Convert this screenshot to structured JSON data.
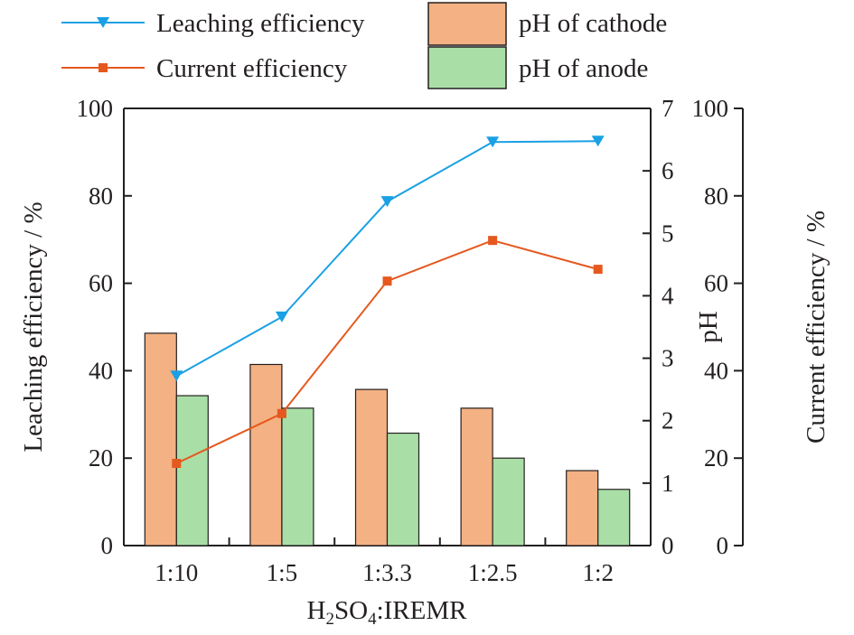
{
  "chart_data": {
    "type": "bar",
    "title": "",
    "categories": [
      "1:10",
      "1:5",
      "1:3.3",
      "1:2.5",
      "1:2"
    ],
    "xlabel": {
      "main": "H",
      "sub1": "2",
      "mid": "SO",
      "sub2": "4",
      "tail": ":IREMR"
    },
    "left_axis": {
      "label": "Leaching efficiency / %",
      "ylim": [
        0,
        100
      ],
      "ticks": [
        0,
        20,
        40,
        60,
        80,
        100
      ]
    },
    "middle_axis": {
      "label": "pH",
      "ylim": [
        0,
        7
      ],
      "ticks": [
        0,
        1,
        2,
        3,
        4,
        5,
        6,
        7
      ]
    },
    "right_axis": {
      "label": "Current efficiency / %",
      "ylim": [
        0,
        100
      ],
      "ticks": [
        0,
        20,
        40,
        60,
        80,
        100
      ]
    },
    "series": [
      {
        "name": "Leaching efficiency",
        "kind": "line",
        "axis": "left",
        "marker": "triangle-down",
        "color": "#1aa0e4",
        "values": [
          38.8,
          52.3,
          78.7,
          92.3,
          92.5
        ]
      },
      {
        "name": "Current efficiency",
        "kind": "line",
        "axis": "right",
        "marker": "square",
        "color": "#e5581e",
        "values": [
          18.8,
          30.2,
          60.5,
          69.8,
          63.2
        ]
      },
      {
        "name": "pH of cathode",
        "kind": "bar",
        "axis": "middle",
        "color": "#f4b183",
        "values": [
          3.4,
          2.9,
          2.5,
          2.2,
          1.2
        ]
      },
      {
        "name": "pH of anode",
        "kind": "bar",
        "axis": "middle",
        "color": "#a9dfa6",
        "values": [
          2.4,
          2.2,
          1.8,
          1.4,
          0.9
        ]
      }
    ],
    "legend_position": "top",
    "grid": false
  }
}
